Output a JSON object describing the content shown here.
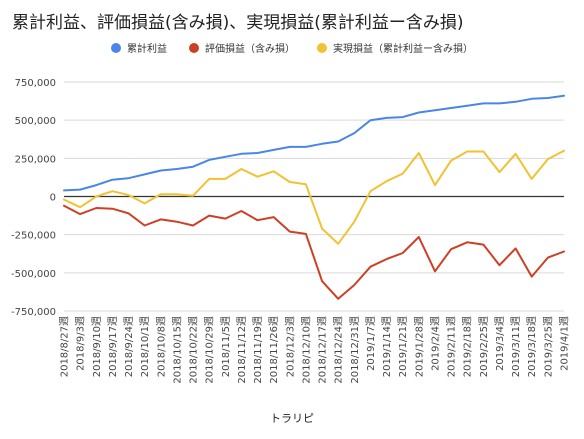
{
  "chart_data": {
    "type": "line",
    "title": "累計利益、評価損益(含み損)、実現損益(累計利益ー含み損)",
    "xlabel": "トラリピ",
    "ylabel": "",
    "ylim": [
      -750000,
      750000
    ],
    "yticks": [
      "750,000",
      "500,000",
      "250,000",
      "0",
      "-250,000",
      "-500,000",
      "-750,000"
    ],
    "ytick_values": [
      750000,
      500000,
      250000,
      0,
      -250000,
      -500000,
      -750000
    ],
    "grid": true,
    "legend_position": "top",
    "x": [
      "2018/8/27週",
      "2018/9/3週",
      "2018/9/10週",
      "2018/9/17週",
      "2018/9/24週",
      "2018/10/1週",
      "2018/10/8週",
      "2018/10/15週",
      "2018/10/22週",
      "2018/10/29週",
      "2018/11/5週",
      "2018/11/12週",
      "2018/11/19週",
      "2018/11/26週",
      "2018/12/3週",
      "2018/12/10週",
      "2018/12/17週",
      "2018/12/24週",
      "2018/12/31週",
      "2019/1/7週",
      "2019/1/14週",
      "2019/1/21週",
      "2019/1/28週",
      "2019/2/4週",
      "2019/2/11週",
      "2019/2/18週",
      "2019/2/25週",
      "2019/3/4週",
      "2019/3/11週",
      "2019/3/18週",
      "2019/3/25週",
      "2019/4/1週"
    ],
    "x_tick_labels": [
      "2018/8/27週",
      "2018/9/3週",
      "2018/9/10週",
      "2018/9/17週",
      "2018/9/24週",
      "2018/10/1週",
      "2018/10/8週",
      "2018/10/15週",
      "2018/10/22週",
      "2018/10/29週",
      "2018/11/5週",
      "2018/11/12週",
      "2018/11/19週",
      "2018/11/26週",
      "2018/12/3週",
      "2018/12/10週",
      "2018/12/17週",
      "2018/12/24週",
      "2018/12/31週",
      "2019/1/7週",
      "2019/1/14週",
      "2019/1/21週",
      "2019/1/28週",
      "2019/2/4週",
      "2019/2/11週",
      "2019/2/18週",
      "2019/2/25週",
      "2019/3/4週",
      "2019/3/11週",
      "2019/3/18週",
      "2019/3/25週",
      "2019/4/1週"
    ],
    "series": [
      {
        "name": "累計利益",
        "color": "#4a86e8",
        "values": [
          40000,
          45000,
          75000,
          110000,
          120000,
          145000,
          170000,
          180000,
          195000,
          240000,
          260000,
          280000,
          285000,
          305000,
          325000,
          325000,
          345000,
          360000,
          415000,
          500000,
          515000,
          520000,
          550000,
          565000,
          580000,
          595000,
          610000,
          610000,
          620000,
          640000,
          645000,
          660000
        ]
      },
      {
        "name": "評価損益（含み損）",
        "color": "#cc4125",
        "values": [
          -60000,
          -115000,
          -75000,
          -80000,
          -110000,
          -190000,
          -150000,
          -165000,
          -190000,
          -125000,
          -145000,
          -95000,
          -155000,
          -135000,
          -230000,
          -245000,
          -555000,
          -670000,
          -580000,
          -460000,
          -410000,
          -370000,
          -265000,
          -490000,
          -345000,
          -300000,
          -315000,
          -450000,
          -340000,
          -525000,
          -400000,
          -360000
        ]
      },
      {
        "name": "実現損益（累計利益ー含み損）",
        "color": "#f1c232",
        "values": [
          -20000,
          -70000,
          0,
          35000,
          10000,
          -45000,
          15000,
          15000,
          5000,
          115000,
          115000,
          180000,
          130000,
          165000,
          95000,
          80000,
          -210000,
          -310000,
          -165000,
          35000,
          100000,
          150000,
          285000,
          75000,
          235000,
          295000,
          295000,
          160000,
          280000,
          115000,
          245000,
          300000
        ]
      }
    ]
  }
}
